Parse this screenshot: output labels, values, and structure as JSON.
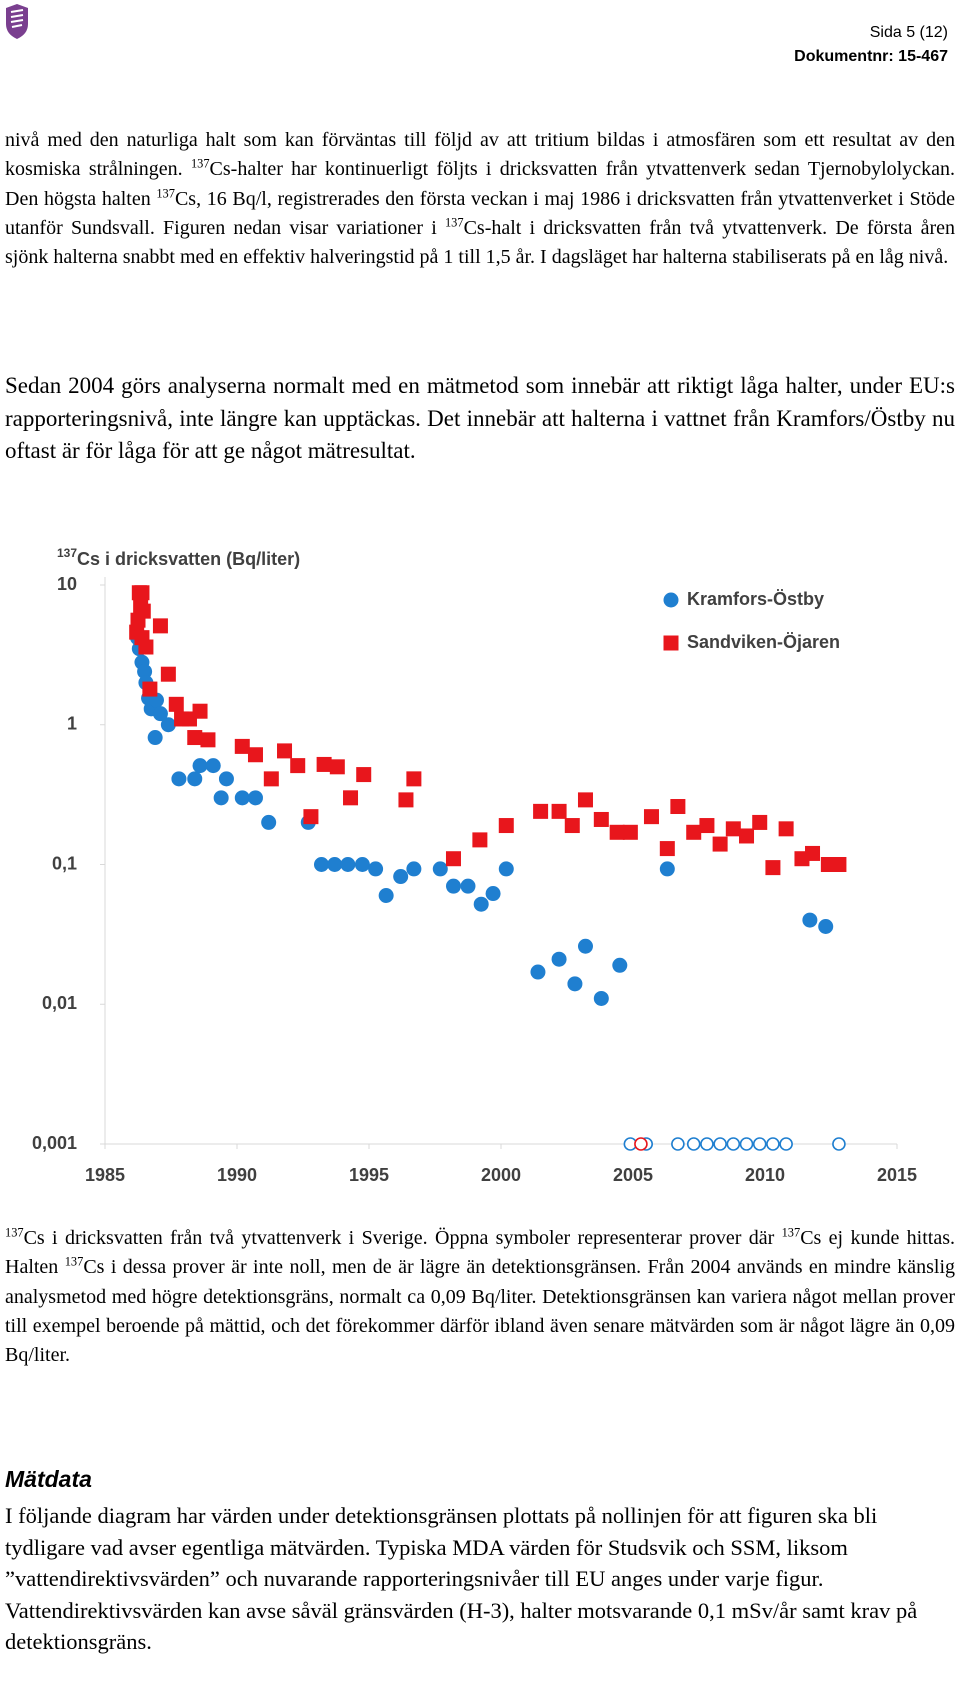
{
  "header": {
    "page": "Sida 5 (12)",
    "doc_number": "Dokumentnr: 15-467"
  },
  "paragraphs": [
    [
      "nivå med den naturliga halt som kan förväntas till följd av att tritium bildas i atmosfären som ett resultat av den kosmiska strålningen. ",
      {
        "sup": "137"
      },
      "Cs-halter har kontinuerligt följts i dricksvatten från ytvattenverk sedan Tjernobylolyckan. Den högsta halten ",
      {
        "sup": "137"
      },
      "Cs, 16 Bq/l, registrerades den första veckan i maj 1986 i dricksvatten från ytvattenverket i Stöde utanför Sundsvall. Figuren nedan visar variationer i ",
      {
        "sup": "137"
      },
      "Cs-halt i dricksvatten från två ytvattenverk. De första åren sjönk halterna snabbt med en effektiv halveringstid på 1 till 1,5 år. I dagsläget har halterna stabiliserats på en låg nivå."
    ],
    [
      "Sedan 2004 görs analyserna normalt med en mätmetod som innebär att riktigt låga halter, under EU:s rapporteringsnivå, inte längre kan upptäckas. Det innebär att halterna i vattnet från Kramfors/Östby nu oftast är för låga för att ge något mätresultat."
    ]
  ],
  "chart_data": {
    "type": "scatter",
    "title_sup": "137",
    "title": "Cs i dricksvatten (Bq/liter)",
    "xlim": [
      1985,
      2015
    ],
    "xticks": [
      1985,
      1990,
      1995,
      2000,
      2005,
      2010,
      2015
    ],
    "ylim": [
      0.001,
      10
    ],
    "log_scale": true,
    "yticks": [
      10,
      1,
      {
        "value": 0.1,
        "label": "0,1"
      },
      {
        "value": 0.01,
        "label": "0,01"
      },
      {
        "value": 0.001,
        "label": "0,001"
      }
    ],
    "grid": false,
    "legend": "upper right",
    "series": [
      {
        "name": "Kramfors-Östby",
        "color": "#1f7fd0",
        "marker": "circle",
        "x": [
          1986.23,
          1986.3,
          1986.4,
          1986.5,
          1986.55,
          1986.65,
          1986.75,
          1986.9,
          1986.95,
          1987.1,
          1987.4,
          1987.8,
          1988.4,
          1988.6,
          1989.1,
          1989.6,
          1989.4,
          1990.2,
          1990.7,
          1991.2,
          1992.7,
          1993.2,
          1993.7,
          1994.2,
          1994.75,
          1995.25,
          1995.65,
          1996.2,
          1996.7,
          1997.7,
          1998.2,
          1998.75,
          1999.25,
          1999.7,
          2000.2,
          2001.4,
          2002.2,
          2002.8,
          2003.2,
          2003.8,
          2004.5,
          2006.3,
          2011.7,
          2012.3
        ],
        "values": [
          4.2,
          3.5,
          2.8,
          2.4,
          2.0,
          1.55,
          1.3,
          0.81,
          1.5,
          1.2,
          1.0,
          0.41,
          0.41,
          0.51,
          0.51,
          0.41,
          0.3,
          0.3,
          0.3,
          0.2,
          0.2,
          0.1,
          0.1,
          0.1,
          0.1,
          0.093,
          0.06,
          0.082,
          0.093,
          0.093,
          0.07,
          0.07,
          0.052,
          0.062,
          0.093,
          0.017,
          0.021,
          0.014,
          0.026,
          0.011,
          0.019,
          0.093,
          0.04,
          0.036
        ]
      },
      {
        "name": "Sandviken-Öjaren",
        "color": "#e8161c",
        "marker": "square",
        "x": [
          1986.3,
          1986.4,
          1986.35,
          1986.45,
          1986.25,
          1986.2,
          1986.4,
          1986.55,
          1987.1,
          1987.4,
          1986.7,
          1987.7,
          1987.9,
          1988.2,
          1988.6,
          1988.4,
          1988.9,
          1990.2,
          1990.7,
          1991.3,
          1991.8,
          1992.3,
          1992.8,
          1993.3,
          1993.8,
          1994.3,
          1994.8,
          1996.4,
          1996.7,
          1998.2,
          1999.2,
          2000.2,
          2001.5,
          2002.2,
          2002.7,
          2003.2,
          2003.8,
          2004.4,
          2004.9,
          2005.7,
          2006.3,
          2006.7,
          2007.3,
          2007.8,
          2008.3,
          2008.8,
          2009.3,
          2009.8,
          2010.3,
          2010.8,
          2011.4,
          2011.8,
          2012.4,
          2012.8
        ],
        "values": [
          8.8,
          8.8,
          7.1,
          6.5,
          5.6,
          4.6,
          4.2,
          3.6,
          5.1,
          2.3,
          1.8,
          1.4,
          1.1,
          1.1,
          1.25,
          0.81,
          0.78,
          0.7,
          0.61,
          0.41,
          0.65,
          0.51,
          0.22,
          0.52,
          0.5,
          0.3,
          0.44,
          0.29,
          0.41,
          0.11,
          0.15,
          0.19,
          0.24,
          0.24,
          0.19,
          0.29,
          0.21,
          0.17,
          0.17,
          0.22,
          0.13,
          0.26,
          0.17,
          0.19,
          0.14,
          0.18,
          0.16,
          0.2,
          0.095,
          0.18,
          0.11,
          0.12,
          0.1,
          0.1
        ]
      },
      {
        "color": "#1f7fd0",
        "marker": "open-circle",
        "x": [
          2004.9,
          2005.5,
          2006.7,
          2007.3,
          2007.8,
          2008.3,
          2008.8,
          2009.3,
          2009.8,
          2010.3,
          2010.8,
          2012.8
        ],
        "values": [
          0.001,
          0.001,
          0.001,
          0.001,
          0.001,
          0.001,
          0.001,
          0.001,
          0.001,
          0.001,
          0.001,
          0.001
        ]
      },
      {
        "color": "#e8161c",
        "marker": "open-circle",
        "x": [
          2005.3
        ],
        "values": [
          0.001
        ]
      }
    ]
  },
  "caption": [
    {
      "sup": "137"
    },
    "Cs i dricksvatten från två ytvattenverk i Sverige. Öppna symboler representerar prover där ",
    {
      "sup": "137"
    },
    "Cs ej kunde hittas. Halten ",
    {
      "sup": "137"
    },
    "Cs i dessa prover är inte noll, men de är lägre än detektionsgränsen. Från 2004 används en mindre känslig analysmetod med högre detektionsgräns, normalt ca 0,09 Bq/liter. Detektionsgränsen kan variera något mellan prover till exempel beroende på mättid, och det förekommer därför ibland även senare mätvärden som är något lägre än 0,09 Bq/liter."
  ],
  "section": {
    "heading": "Mätdata",
    "text": "I följande diagram har värden under detektionsgränsen plottats på nollinjen för att figuren ska bli tydligare vad avser egentliga mätvärden. Typiska MDA värden för Studsvik och SSM, liksom ”vattendirektivsvärden” och nuvarande rapporteringsnivåer till EU anges under varje figur. Vattendirektivsvärden kan avse såväl gränsvärden (H-3), halter motsvarande 0,1 mSv/år samt krav på detektionsgräns."
  }
}
